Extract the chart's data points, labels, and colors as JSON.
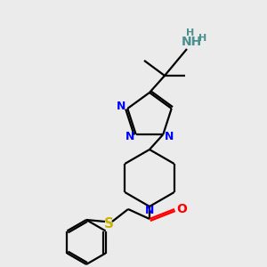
{
  "background_color": "#ebebeb",
  "bond_color": "#000000",
  "nitrogen_color": "#0000ff",
  "oxygen_color": "#ff0000",
  "sulfur_color": "#c8b400",
  "nh2_color": "#4a9090",
  "h_color": "#4a9090",
  "figsize": [
    3.0,
    3.0
  ],
  "dpi": 100,
  "lw": 1.6,
  "fs": 9
}
